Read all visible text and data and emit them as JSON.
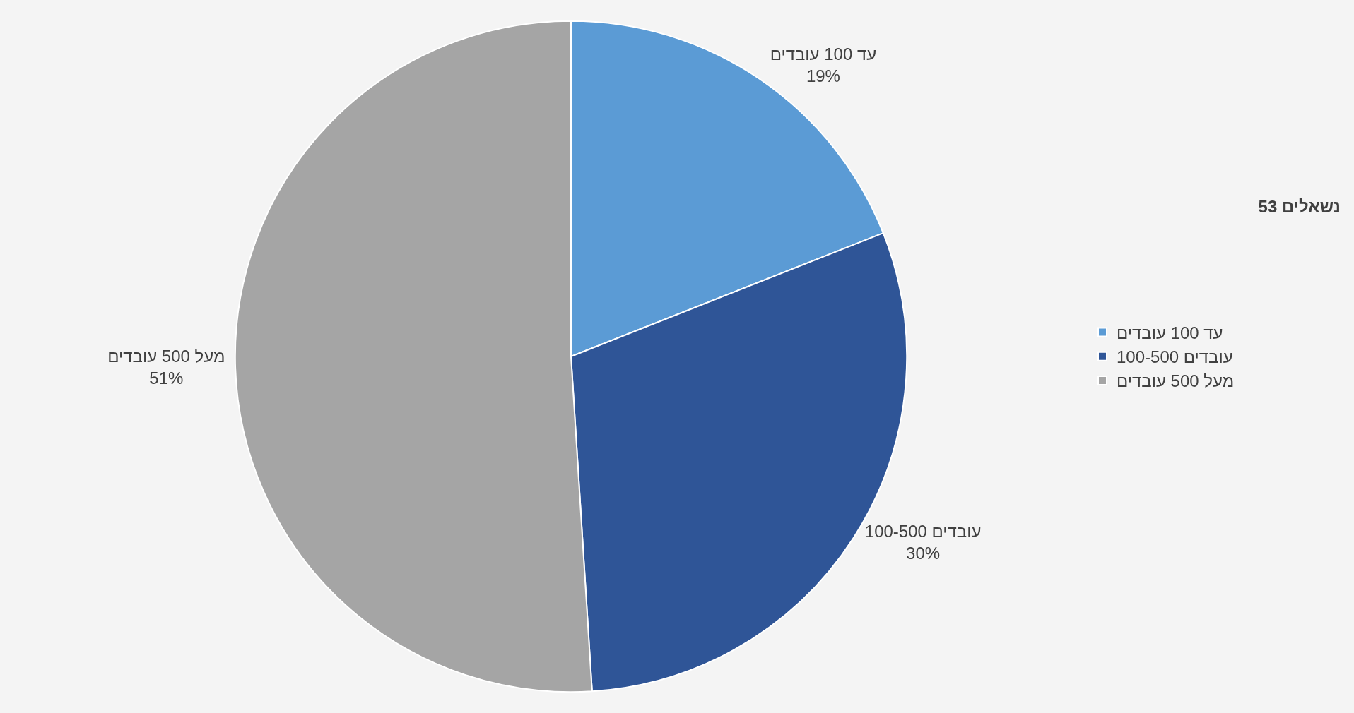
{
  "chart_data": {
    "type": "pie",
    "title": "53 נשאלים",
    "categories": [
      "עד 100 עובדים",
      "100-500 עובדים",
      "מעל 500 עובדים"
    ],
    "values": [
      19,
      30,
      51
    ],
    "value_labels": [
      "19%",
      "30%",
      "51%"
    ],
    "colors": [
      "#5b9bd5",
      "#2f5597",
      "#a5a5a5"
    ],
    "legend": "right"
  }
}
